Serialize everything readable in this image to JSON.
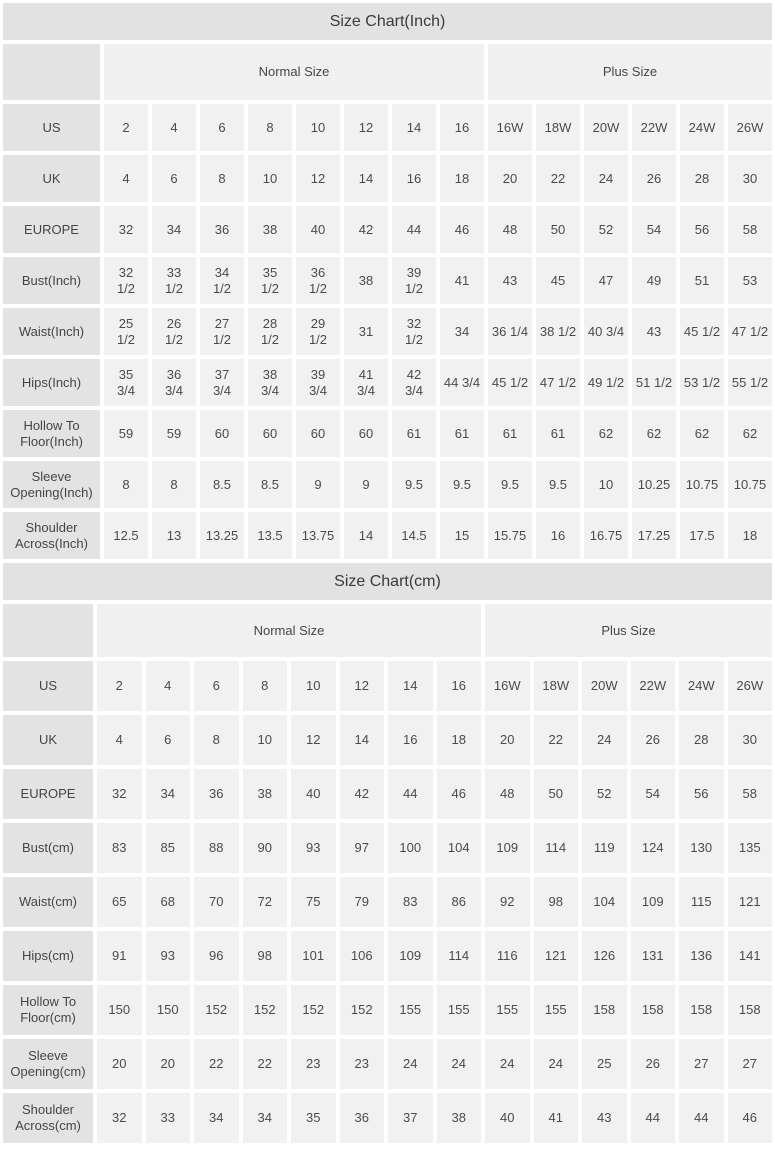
{
  "colors": {
    "title_bar_bg": "#e2e2e2",
    "label_cell_bg": "#e3e3e3",
    "header_cell_bg": "#f0f0f0",
    "data_cell_bg": "#f1f1f1",
    "text": "#4b4b4b"
  },
  "chart_data": [
    {
      "type": "table",
      "title": "Size Chart(Inch)",
      "column_groups": [
        {
          "label": "Normal Size",
          "span": 8
        },
        {
          "label": "Plus Size",
          "span": 6
        }
      ],
      "rows": [
        {
          "label": "US",
          "values": [
            "2",
            "4",
            "6",
            "8",
            "10",
            "12",
            "14",
            "16",
            "16W",
            "18W",
            "20W",
            "22W",
            "24W",
            "26W"
          ]
        },
        {
          "label": "UK",
          "values": [
            "4",
            "6",
            "8",
            "10",
            "12",
            "14",
            "16",
            "18",
            "20",
            "22",
            "24",
            "26",
            "28",
            "30"
          ]
        },
        {
          "label": "EUROPE",
          "values": [
            "32",
            "34",
            "36",
            "38",
            "40",
            "42",
            "44",
            "46",
            "48",
            "50",
            "52",
            "54",
            "56",
            "58"
          ]
        },
        {
          "label": "Bust(Inch)",
          "values": [
            "32 1/2",
            "33 1/2",
            "34 1/2",
            "35 1/2",
            "36 1/2",
            "38",
            "39 1/2",
            "41",
            "43",
            "45",
            "47",
            "49",
            "51",
            "53"
          ]
        },
        {
          "label": "Waist(Inch)",
          "values": [
            "25 1/2",
            "26 1/2",
            "27 1/2",
            "28 1/2",
            "29 1/2",
            "31",
            "32 1/2",
            "34",
            "36 1/4",
            "38 1/2",
            "40 3/4",
            "43",
            "45 1/2",
            "47 1/2"
          ]
        },
        {
          "label": "Hips(Inch)",
          "values": [
            "35 3/4",
            "36 3/4",
            "37 3/4",
            "38 3/4",
            "39 3/4",
            "41 3/4",
            "42 3/4",
            "44 3/4",
            "45 1/2",
            "47 1/2",
            "49 1/2",
            "51 1/2",
            "53 1/2",
            "55 1/2"
          ]
        },
        {
          "label": "Hollow To Floor(Inch)",
          "values": [
            "59",
            "59",
            "60",
            "60",
            "60",
            "60",
            "61",
            "61",
            "61",
            "61",
            "62",
            "62",
            "62",
            "62"
          ]
        },
        {
          "label": "Sleeve Opening(Inch)",
          "values": [
            "8",
            "8",
            "8.5",
            "8.5",
            "9",
            "9",
            "9.5",
            "9.5",
            "9.5",
            "9.5",
            "10",
            "10.25",
            "10.75",
            "10.75"
          ]
        },
        {
          "label": "Shoulder Across(Inch)",
          "values": [
            "12.5",
            "13",
            "13.25",
            "13.5",
            "13.75",
            "14",
            "14.5",
            "15",
            "15.75",
            "16",
            "16.75",
            "17.25",
            "17.5",
            "18"
          ]
        }
      ]
    },
    {
      "type": "table",
      "title": "Size Chart(cm)",
      "column_groups": [
        {
          "label": "Normal Size",
          "span": 8
        },
        {
          "label": "Plus Size",
          "span": 6
        }
      ],
      "rows": [
        {
          "label": "US",
          "values": [
            "2",
            "4",
            "6",
            "8",
            "10",
            "12",
            "14",
            "16",
            "16W",
            "18W",
            "20W",
            "22W",
            "24W",
            "26W"
          ]
        },
        {
          "label": "UK",
          "values": [
            "4",
            "6",
            "8",
            "10",
            "12",
            "14",
            "16",
            "18",
            "20",
            "22",
            "24",
            "26",
            "28",
            "30"
          ]
        },
        {
          "label": "EUROPE",
          "values": [
            "32",
            "34",
            "36",
            "38",
            "40",
            "42",
            "44",
            "46",
            "48",
            "50",
            "52",
            "54",
            "56",
            "58"
          ]
        },
        {
          "label": "Bust(cm)",
          "values": [
            "83",
            "85",
            "88",
            "90",
            "93",
            "97",
            "100",
            "104",
            "109",
            "114",
            "119",
            "124",
            "130",
            "135"
          ]
        },
        {
          "label": "Waist(cm)",
          "values": [
            "65",
            "68",
            "70",
            "72",
            "75",
            "79",
            "83",
            "86",
            "92",
            "98",
            "104",
            "109",
            "115",
            "121"
          ]
        },
        {
          "label": "Hips(cm)",
          "values": [
            "91",
            "93",
            "96",
            "98",
            "101",
            "106",
            "109",
            "114",
            "116",
            "121",
            "126",
            "131",
            "136",
            "141"
          ]
        },
        {
          "label": "Hollow To Floor(cm)",
          "values": [
            "150",
            "150",
            "152",
            "152",
            "152",
            "152",
            "155",
            "155",
            "155",
            "155",
            "158",
            "158",
            "158",
            "158"
          ]
        },
        {
          "label": "Sleeve Opening(cm)",
          "values": [
            "20",
            "20",
            "22",
            "22",
            "23",
            "23",
            "24",
            "24",
            "24",
            "24",
            "25",
            "26",
            "27",
            "27"
          ]
        },
        {
          "label": "Shoulder Across(cm)",
          "values": [
            "32",
            "33",
            "34",
            "34",
            "35",
            "36",
            "37",
            "38",
            "40",
            "41",
            "43",
            "44",
            "44",
            "46"
          ]
        }
      ]
    }
  ]
}
